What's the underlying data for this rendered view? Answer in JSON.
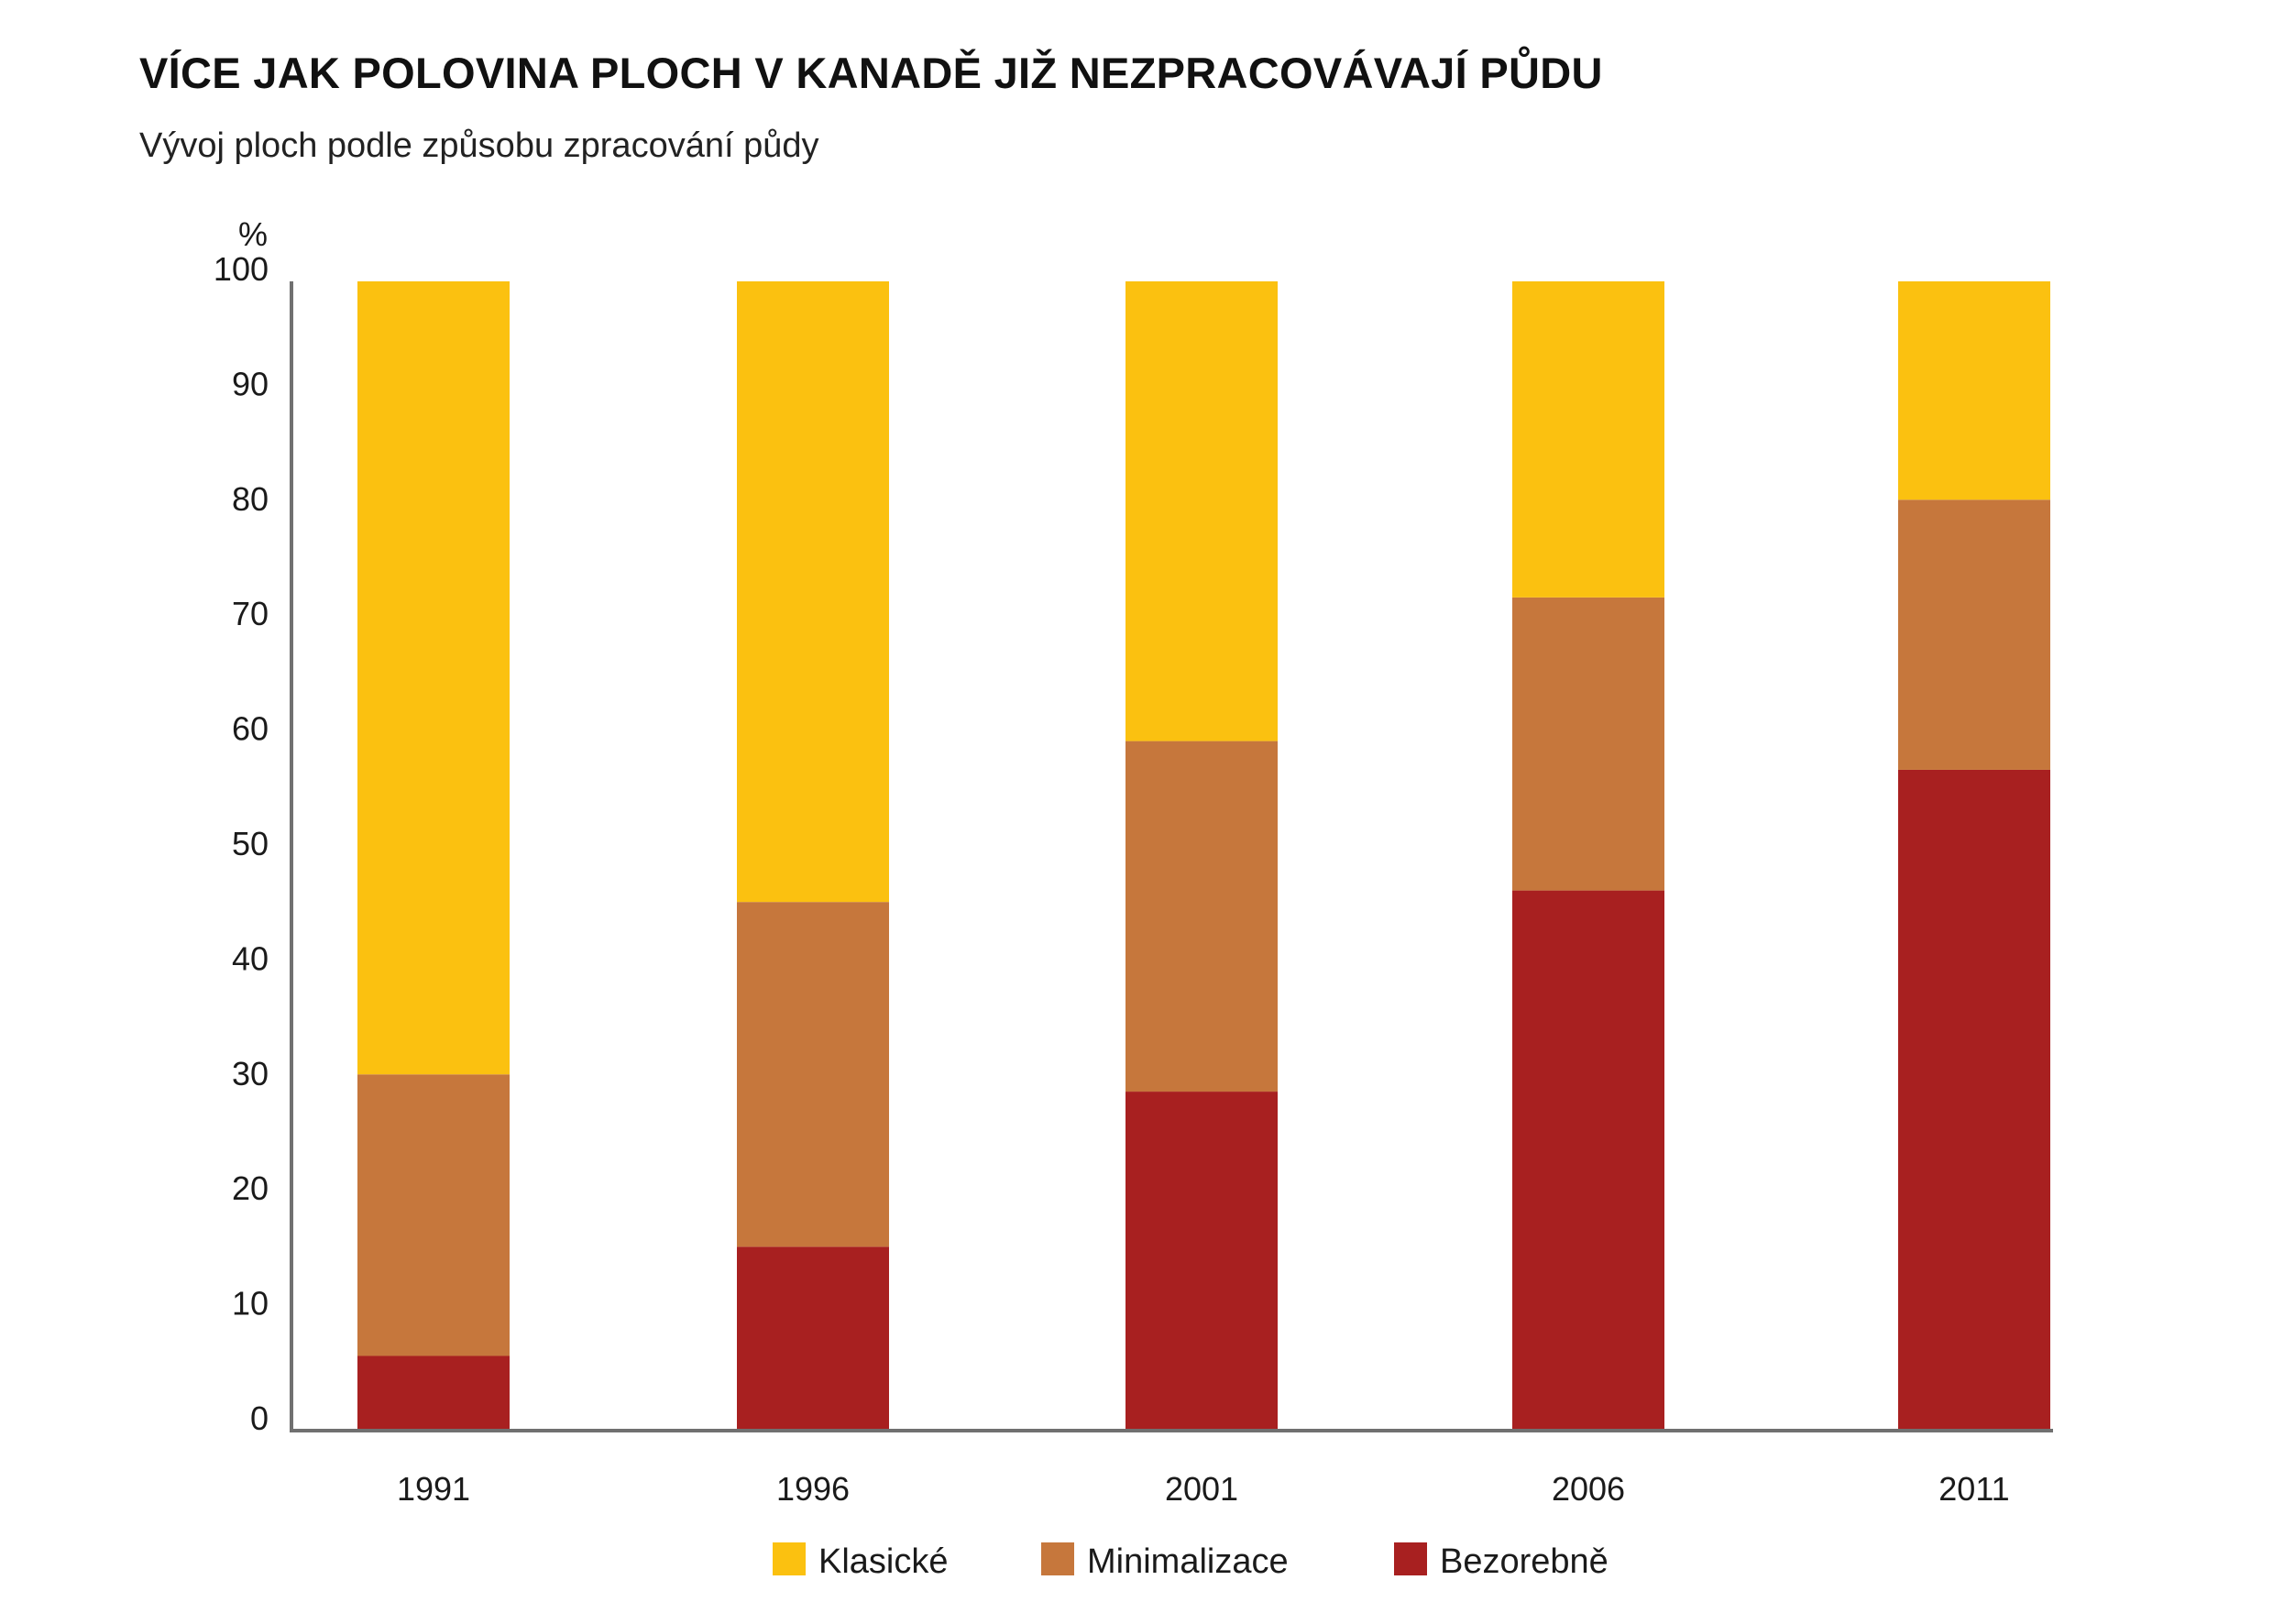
{
  "chart_data": {
    "type": "bar",
    "stacked": true,
    "title": "VÍCE JAK POLOVINA PLOCH V KANADĚ JIŽ NEZPRACOVÁVAJÍ PŮDU",
    "subtitle": "Vývoj ploch podle způsobu zpracování půdy",
    "ylabel": "%",
    "xlabel": "",
    "ylim": [
      0,
      100
    ],
    "yticks": [
      "0",
      "10",
      "20",
      "30",
      "40",
      "50",
      "60",
      "70",
      "80",
      "90",
      "100"
    ],
    "categories": [
      "1991",
      "1996",
      "2001",
      "2006",
      "2011"
    ],
    "series": [
      {
        "name": "Bezorebně",
        "color": "#a82020",
        "values": [
          6.5,
          16,
          29.5,
          47,
          57.5
        ]
      },
      {
        "name": "Minimalizace",
        "color": "#c6773c",
        "values": [
          24.5,
          30,
          30.5,
          25.5,
          23.5
        ]
      },
      {
        "name": "Klasické",
        "color": "#fbc110",
        "values": [
          69,
          54,
          40,
          27.5,
          19
        ]
      }
    ],
    "legend": [
      {
        "name": "Klasické",
        "color": "#fbc110"
      },
      {
        "name": "Minimalizace",
        "color": "#c6773c"
      },
      {
        "name": "Bezorebně",
        "color": "#a82020"
      }
    ],
    "legend_position": "bottom",
    "grid": false,
    "axis_color": "#707070"
  }
}
